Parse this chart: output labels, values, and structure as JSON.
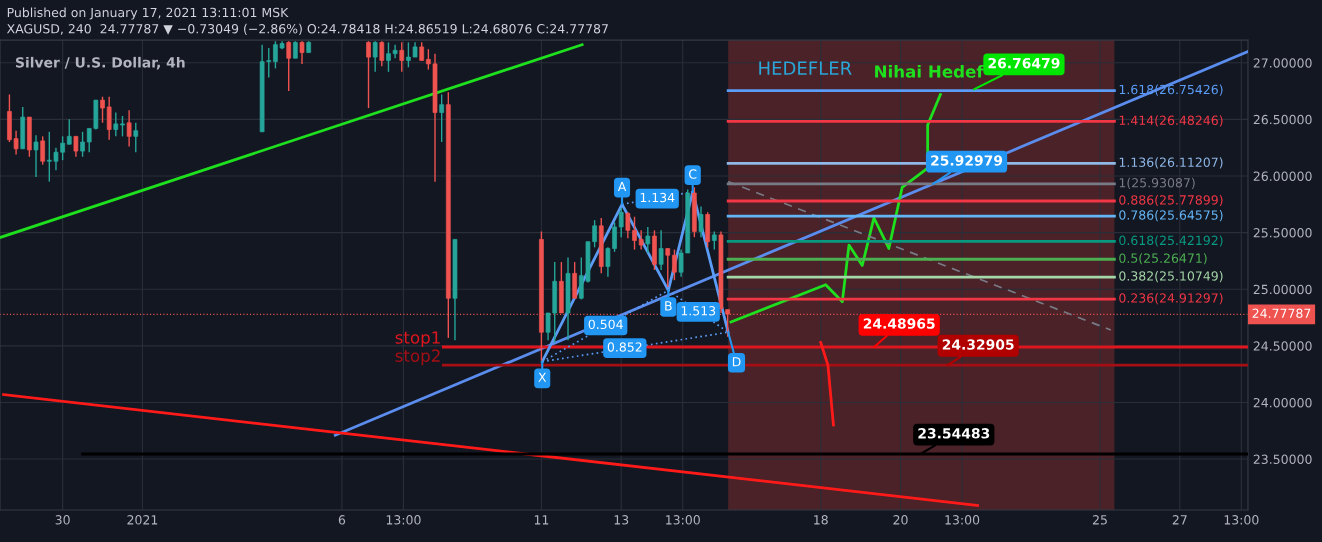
{
  "chart_data": {
    "type": "candlestick",
    "title": "Silver / U.S. Dollar, 4h",
    "subtitle": "XAGUSD, 240  24.77787 ▼ −0.73049 (−2.86%) O:24.78418 H:24.86519 L:24.68076 C:24.77787",
    "x": [
      "2020-12-28T16:00",
      "2020-12-28T20:00",
      "2020-12-29T00:00",
      "2020-12-29T04:00",
      "2020-12-29T08:00",
      "2020-12-29T12:00",
      "2020-12-29T16:00",
      "2020-12-29T20:00",
      "2020-12-30T00:00",
      "2020-12-30T04:00",
      "2020-12-30T08:00",
      "2020-12-30T12:00",
      "2020-12-30T16:00",
      "2020-12-30T20:00",
      "2020-12-31T00:00",
      "2020-12-31T04:00",
      "2020-12-31T08:00",
      "2020-12-31T12:00",
      "2020-12-31T16:00",
      "2020-12-31T20:00",
      "2021-01-04T00:00",
      "2021-01-04T04:00",
      "2021-01-04T08:00",
      "2021-01-04T12:00",
      "2021-01-04T16:00",
      "2021-01-04T20:00",
      "2021-01-05T00:00",
      "2021-01-05T04:00",
      "2021-01-06T16:00",
      "2021-01-06T20:00",
      "2021-01-07T00:00",
      "2021-01-07T04:00",
      "2021-01-07T08:00",
      "2021-01-07T12:00",
      "2021-01-07T16:00",
      "2021-01-07T20:00",
      "2021-01-08T00:00",
      "2021-01-08T04:00",
      "2021-01-08T08:00",
      "2021-01-08T12:00",
      "2021-01-08T16:00",
      "2021-01-08T20:00",
      "2021-01-11T00:00",
      "2021-01-11T04:00",
      "2021-01-11T08:00",
      "2021-01-11T12:00",
      "2021-01-11T16:00",
      "2021-01-11T20:00",
      "2021-01-12T00:00",
      "2021-01-12T04:00",
      "2021-01-12T08:00",
      "2021-01-12T12:00",
      "2021-01-12T16:00",
      "2021-01-12T20:00",
      "2021-01-13T00:00",
      "2021-01-13T04:00",
      "2021-01-13T08:00",
      "2021-01-13T12:00",
      "2021-01-13T16:00",
      "2021-01-13T20:00",
      "2021-01-14T00:00",
      "2021-01-14T04:00",
      "2021-01-14T08:00",
      "2021-01-14T12:00",
      "2021-01-14T16:00",
      "2021-01-14T20:00",
      "2021-01-15T00:00",
      "2021-01-15T04:00",
      "2021-01-15T08:00",
      "2021-01-15T12:00",
      "2021-01-15T16:00"
    ],
    "ohlc": [
      [
        26.57,
        26.72,
        26.3,
        26.32
      ],
      [
        26.33,
        26.4,
        26.19,
        26.24
      ],
      [
        26.24,
        26.61,
        26.24,
        26.52
      ],
      [
        26.52,
        26.52,
        26.17,
        26.23
      ],
      [
        26.23,
        26.36,
        25.99,
        26.3
      ],
      [
        26.31,
        26.35,
        26.1,
        26.13
      ],
      [
        26.13,
        26.39,
        25.95,
        26.14
      ],
      [
        26.13,
        26.25,
        26.05,
        26.21
      ],
      [
        26.21,
        26.35,
        26.14,
        26.29
      ],
      [
        26.28,
        26.5,
        26.28,
        26.35
      ],
      [
        26.35,
        26.35,
        26.17,
        26.22
      ],
      [
        26.22,
        26.39,
        26.17,
        26.3
      ],
      [
        26.3,
        26.42,
        26.21,
        26.42
      ],
      [
        26.42,
        26.67,
        26.41,
        26.67
      ],
      [
        26.67,
        26.7,
        26.47,
        26.6
      ],
      [
        26.61,
        26.7,
        26.32,
        26.41
      ],
      [
        26.41,
        26.56,
        26.35,
        26.46
      ],
      [
        26.45,
        26.53,
        26.35,
        26.46
      ],
      [
        26.47,
        26.58,
        26.26,
        26.35
      ],
      [
        26.35,
        26.47,
        26.21,
        26.4
      ],
      [
        26.39,
        27.16,
        26.39,
        27.01
      ],
      [
        27.01,
        27.13,
        26.87,
        27.02
      ],
      [
        27.01,
        27.19,
        26.95,
        27.16
      ],
      [
        27.13,
        27.19,
        27.12,
        27.17
      ],
      [
        27.18,
        27.19,
        26.75,
        27.04
      ],
      [
        27.04,
        27.19,
        27.04,
        27.18
      ],
      [
        27.18,
        27.19,
        26.99,
        27.09
      ],
      [
        27.09,
        27.19,
        27.09,
        27.18
      ],
      [
        27.18,
        27.19,
        26.6,
        27.05
      ],
      [
        27.05,
        27.19,
        26.92,
        27.18
      ],
      [
        27.18,
        27.19,
        26.97,
        27.02
      ],
      [
        27.02,
        27.18,
        26.92,
        27.08
      ],
      [
        27.08,
        27.16,
        27.04,
        27.11
      ],
      [
        27.11,
        27.18,
        26.92,
        27.02
      ],
      [
        27.02,
        27.18,
        26.96,
        27.05
      ],
      [
        27.05,
        27.18,
        27.05,
        27.14
      ],
      [
        27.14,
        27.18,
        27.02,
        27.02
      ],
      [
        27.03,
        27.12,
        26.94,
        26.99
      ],
      [
        26.99,
        27.08,
        25.95,
        26.56
      ],
      [
        26.56,
        26.72,
        26.3,
        26.63
      ],
      [
        26.63,
        26.74,
        24.57,
        24.92
      ],
      [
        24.92,
        25.44,
        24.55,
        25.44
      ],
      [
        25.44,
        25.51,
        24.37,
        24.62
      ],
      [
        24.62,
        24.79,
        24.55,
        24.79
      ],
      [
        24.79,
        25.24,
        24.53,
        25.07
      ],
      [
        25.07,
        25.24,
        24.79,
        24.79
      ],
      [
        24.79,
        25.28,
        24.55,
        25.14
      ],
      [
        25.14,
        25.24,
        24.92,
        24.92
      ],
      [
        24.92,
        25.28,
        24.91,
        25.12
      ],
      [
        25.07,
        25.42,
        25.06,
        25.42
      ],
      [
        25.42,
        25.61,
        25.37,
        25.56
      ],
      [
        25.56,
        25.63,
        25.14,
        25.2
      ],
      [
        25.2,
        25.37,
        25.11,
        25.36
      ],
      [
        25.36,
        25.59,
        25.33,
        25.55
      ],
      [
        25.55,
        25.72,
        25.46,
        25.68
      ],
      [
        25.67,
        25.68,
        25.45,
        25.52
      ],
      [
        25.52,
        25.64,
        25.35,
        25.43
      ],
      [
        25.44,
        25.52,
        25.35,
        25.39
      ],
      [
        25.4,
        25.55,
        25.32,
        25.47
      ],
      [
        25.47,
        25.52,
        25.17,
        25.22
      ],
      [
        25.22,
        25.52,
        25.17,
        25.36
      ],
      [
        25.36,
        25.36,
        25.02,
        25.3
      ],
      [
        25.3,
        25.35,
        25.08,
        25.15
      ],
      [
        25.15,
        25.35,
        25.11,
        25.32
      ],
      [
        25.32,
        25.88,
        25.32,
        25.85
      ],
      [
        25.85,
        25.9,
        25.46,
        25.51
      ],
      [
        25.51,
        25.73,
        25.46,
        25.66
      ],
      [
        25.66,
        25.68,
        25.37,
        25.42
      ],
      [
        25.43,
        25.51,
        25.35,
        25.48
      ],
      [
        25.48,
        25.51,
        24.79,
        24.83
      ],
      [
        24.82,
        24.82,
        24.58,
        24.78
      ]
    ],
    "series": [
      {
        "type": "line",
        "x": [
          "2020-12-28T11:00",
          "2021-01-12T00:30"
        ],
        "values": [
          25.46,
          27.16
        ],
        "color": "#1ee01e"
      },
      {
        "type": "line",
        "x": [
          "2021-01-05T20:00",
          "2021-01-28T17:00"
        ],
        "values": [
          23.71,
          27.1
        ],
        "color": "#5b8def"
      },
      {
        "type": "line",
        "x": [
          "2020-12-28T12:30",
          "2021-01-21T22:20"
        ],
        "values": [
          24.07,
          23.09
        ],
        "color": "#ff1a1a"
      },
      {
        "type": "line",
        "x": [
          "2020-12-30T12:00",
          "2021-01-28T17:00"
        ],
        "values": [
          23.54483,
          23.54483
        ],
        "color": "#000000"
      },
      {
        "type": "line",
        "name": "stop1",
        "x": [
          "2021-01-08T13:00",
          "2021-01-28T17:00"
        ],
        "values": [
          24.48965,
          24.48965
        ],
        "color": "#e0161e"
      },
      {
        "type": "line",
        "name": "stop2",
        "x": [
          "2021-01-08T13:00",
          "2021-01-28T17:00"
        ],
        "values": [
          24.32905,
          24.32905
        ],
        "color": "#a50f14"
      },
      {
        "type": "line",
        "x": [
          "2021-01-15T18:00",
          "2021-01-18T03:00",
          "2021-01-18T13:00",
          "2021-01-18T17:00",
          "2021-01-19T01:00",
          "2021-01-19T08:00",
          "2021-01-19T17:00",
          "2021-01-20T01:00",
          "2021-01-20T16:20",
          "2021-01-20T16:20",
          "2021-01-21T00:00"
        ],
        "values": [
          24.71,
          25.04,
          24.89,
          25.39,
          25.21,
          25.63,
          25.36,
          25.9,
          26.07,
          26.45,
          26.72
        ],
        "color": "#1ee01e"
      },
      {
        "type": "line",
        "x": [
          "2021-01-18T00:00",
          "2021-01-18T04:20",
          "2021-01-18T07:40"
        ],
        "values": [
          24.53,
          24.33,
          23.8
        ],
        "color": "#ff1a1a"
      },
      {
        "type": "line",
        "x": [
          "2021-01-15T16:20",
          "2021-01-25T06:30"
        ],
        "values": [
          25.95,
          24.64
        ],
        "color": "#787b86",
        "line_style": "dashed"
      },
      {
        "type": "line",
        "x": [
          "2021-01-11T00:30",
          "2021-01-13T00:30",
          "2021-01-14T04:20",
          "2021-01-14T19:00",
          "2021-01-15T16:20"
        ],
        "values": [
          24.36,
          25.75,
          24.99,
          25.86,
          24.62
        ],
        "color": "#5b9cf6"
      },
      {
        "type": "line",
        "x": [
          "2021-01-11T00:30",
          "2021-01-14T04:20"
        ],
        "values": [
          24.36,
          24.99
        ],
        "color": "#5b9cf6",
        "line_style": "dotted"
      },
      {
        "type": "line",
        "x": [
          "2021-01-13T00:30",
          "2021-01-14T19:00"
        ],
        "values": [
          25.75,
          25.86
        ],
        "color": "#5b9cf6",
        "line_style": "dotted"
      },
      {
        "type": "line",
        "x": [
          "2021-01-14T04:20",
          "2021-01-15T16:20"
        ],
        "values": [
          24.99,
          24.62
        ],
        "color": "#5b9cf6",
        "line_style": "dotted"
      },
      {
        "type": "line",
        "x": [
          "2021-01-11T00:30",
          "2021-01-15T16:20"
        ],
        "values": [
          24.36,
          24.62
        ],
        "color": "#5b9cf6",
        "line_style": "dotted"
      },
      {
        "type": "line",
        "name": "1.618(26.75426)",
        "x": [
          "2021-01-15T16:20",
          "2021-01-25T08:40"
        ],
        "values": [
          26.75426,
          26.75426
        ],
        "color": "#5b9cf6"
      },
      {
        "type": "line",
        "name": "1.414(26.48246)",
        "x": [
          "2021-01-15T16:20",
          "2021-01-25T08:40"
        ],
        "values": [
          26.48246,
          26.48246
        ],
        "color": "#f23645"
      },
      {
        "type": "line",
        "name": "1.136(26.11207)",
        "x": [
          "2021-01-15T16:20",
          "2021-01-25T08:40"
        ],
        "values": [
          26.11207,
          26.11207
        ],
        "color": "#8fb8e8"
      },
      {
        "type": "line",
        "name": "1(25.93087)",
        "x": [
          "2021-01-15T16:20",
          "2021-01-25T08:40"
        ],
        "values": [
          25.93087,
          25.93087
        ],
        "color": "#787b86"
      },
      {
        "type": "line",
        "name": "0.886(25.77899)",
        "x": [
          "2021-01-15T16:20",
          "2021-01-25T08:40"
        ],
        "values": [
          25.77899,
          25.77899
        ],
        "color": "#f23645"
      },
      {
        "type": "line",
        "name": "0.786(25.64575)",
        "x": [
          "2021-01-15T16:20",
          "2021-01-25T08:40"
        ],
        "values": [
          25.64575,
          25.64575
        ],
        "color": "#64b5f6"
      },
      {
        "type": "line",
        "name": "0.618(25.42192)",
        "x": [
          "2021-01-15T16:20",
          "2021-01-25T08:40"
        ],
        "values": [
          25.42192,
          25.42192
        ],
        "color": "#089981"
      },
      {
        "type": "line",
        "name": "0.5(25.26471)",
        "x": [
          "2021-01-15T16:20",
          "2021-01-25T08:40"
        ],
        "values": [
          25.26471,
          25.26471
        ],
        "color": "#4caf50"
      },
      {
        "type": "line",
        "name": "0.382(25.10749)",
        "x": [
          "2021-01-15T16:20",
          "2021-01-25T08:40"
        ],
        "values": [
          25.10749,
          25.10749
        ],
        "color": "#a5d6a7"
      },
      {
        "type": "line",
        "name": "0.236(24.91297)",
        "x": [
          "2021-01-15T16:20",
          "2021-01-25T08:40"
        ],
        "values": [
          24.91297,
          24.91297
        ],
        "color": "#f23645"
      }
    ],
    "bands": [
      {
        "axis": "x",
        "from": "2021-01-15T16:20",
        "to": "2021-01-25T08:40",
        "color": "#4a2228"
      }
    ],
    "ref_lines": [
      {
        "axis": "y",
        "value": 24.77787,
        "label": "24.77787",
        "color": "#ef5350",
        "line_style": "dotted"
      }
    ],
    "annotations": [
      "Published on January 17, 2021 13:11:01 MSK",
      {
        "text": "X",
        "x": "2021-01-11T00:30",
        "y": 24.36
      },
      {
        "text": "A",
        "x": "2021-01-13T00:30",
        "y": 25.75
      },
      {
        "text": "B",
        "x": "2021-01-14T04:20",
        "y": 24.99
      },
      {
        "text": "C",
        "x": "2021-01-14T19:00",
        "y": 25.86
      },
      {
        "text": "D",
        "x": "2021-01-15T16:20",
        "y": 24.62
      },
      {
        "text": "1.134",
        "x": "2021-01-13T21:40",
        "y": 25.8
      },
      {
        "text": "0.504",
        "x": "2021-01-12T14:40",
        "y": 24.68
      },
      {
        "text": "0.852",
        "x": "2021-01-13T02:10",
        "y": 24.48
      },
      {
        "text": "1.513",
        "x": "2021-01-14T22:20",
        "y": 24.8
      },
      "HEDEFLER",
      "Nihai Hedef",
      {
        "text": "26.76479",
        "x": "2021-01-21T20:10",
        "y": 26.76479
      },
      {
        "text": "25.92979",
        "x": "2021-01-20T19:40",
        "y": 25.92979
      },
      {
        "text": "24.48965",
        "x": "2021-01-19T08:10",
        "y": 24.48965
      },
      {
        "text": "24.32905",
        "x": "2021-01-21T04:20",
        "y": 24.32905
      },
      {
        "text": "23.54483",
        "x": "2021-01-20T12:00",
        "y": 23.54483
      }
    ],
    "xlim": [
      "2020-12-28T10:20",
      "2021-01-28T17:00"
    ],
    "ylim": [
      23.05,
      27.2
    ],
    "xticks": [
      {
        "value": "2020-12-30",
        "label": "30"
      },
      {
        "value": "2021-01-01",
        "label": "2021"
      },
      {
        "value": "2021-01-06",
        "label": "6"
      },
      {
        "value": "2021-01-07T13:00",
        "label": "13:00"
      },
      {
        "value": "2021-01-11",
        "label": "11"
      },
      {
        "value": "2021-01-13",
        "label": "13"
      },
      {
        "value": "2021-01-14T13:00",
        "label": "13:00"
      },
      {
        "value": "2021-01-18",
        "label": "18"
      },
      {
        "value": "2021-01-20",
        "label": "20"
      },
      {
        "value": "2021-01-21T13:00",
        "label": "13:00"
      },
      {
        "value": "2021-01-25",
        "label": "25"
      },
      {
        "value": "2021-01-27",
        "label": "27"
      },
      {
        "value": "2021-01-28T13:00",
        "label": "13:00"
      }
    ],
    "yticks": [
      {
        "value": 23.5,
        "label": "23.50000"
      },
      {
        "value": 24.0,
        "label": "24.00000"
      },
      {
        "value": 24.5,
        "label": "24.50000"
      },
      {
        "value": 25.0,
        "label": "25.00000"
      },
      {
        "value": 25.5,
        "label": "25.50000"
      },
      {
        "value": 26.0,
        "label": "26.00000"
      },
      {
        "value": 26.5,
        "label": "26.50000"
      },
      {
        "value": 27.0,
        "label": "27.00000"
      }
    ],
    "grid": true
  }
}
